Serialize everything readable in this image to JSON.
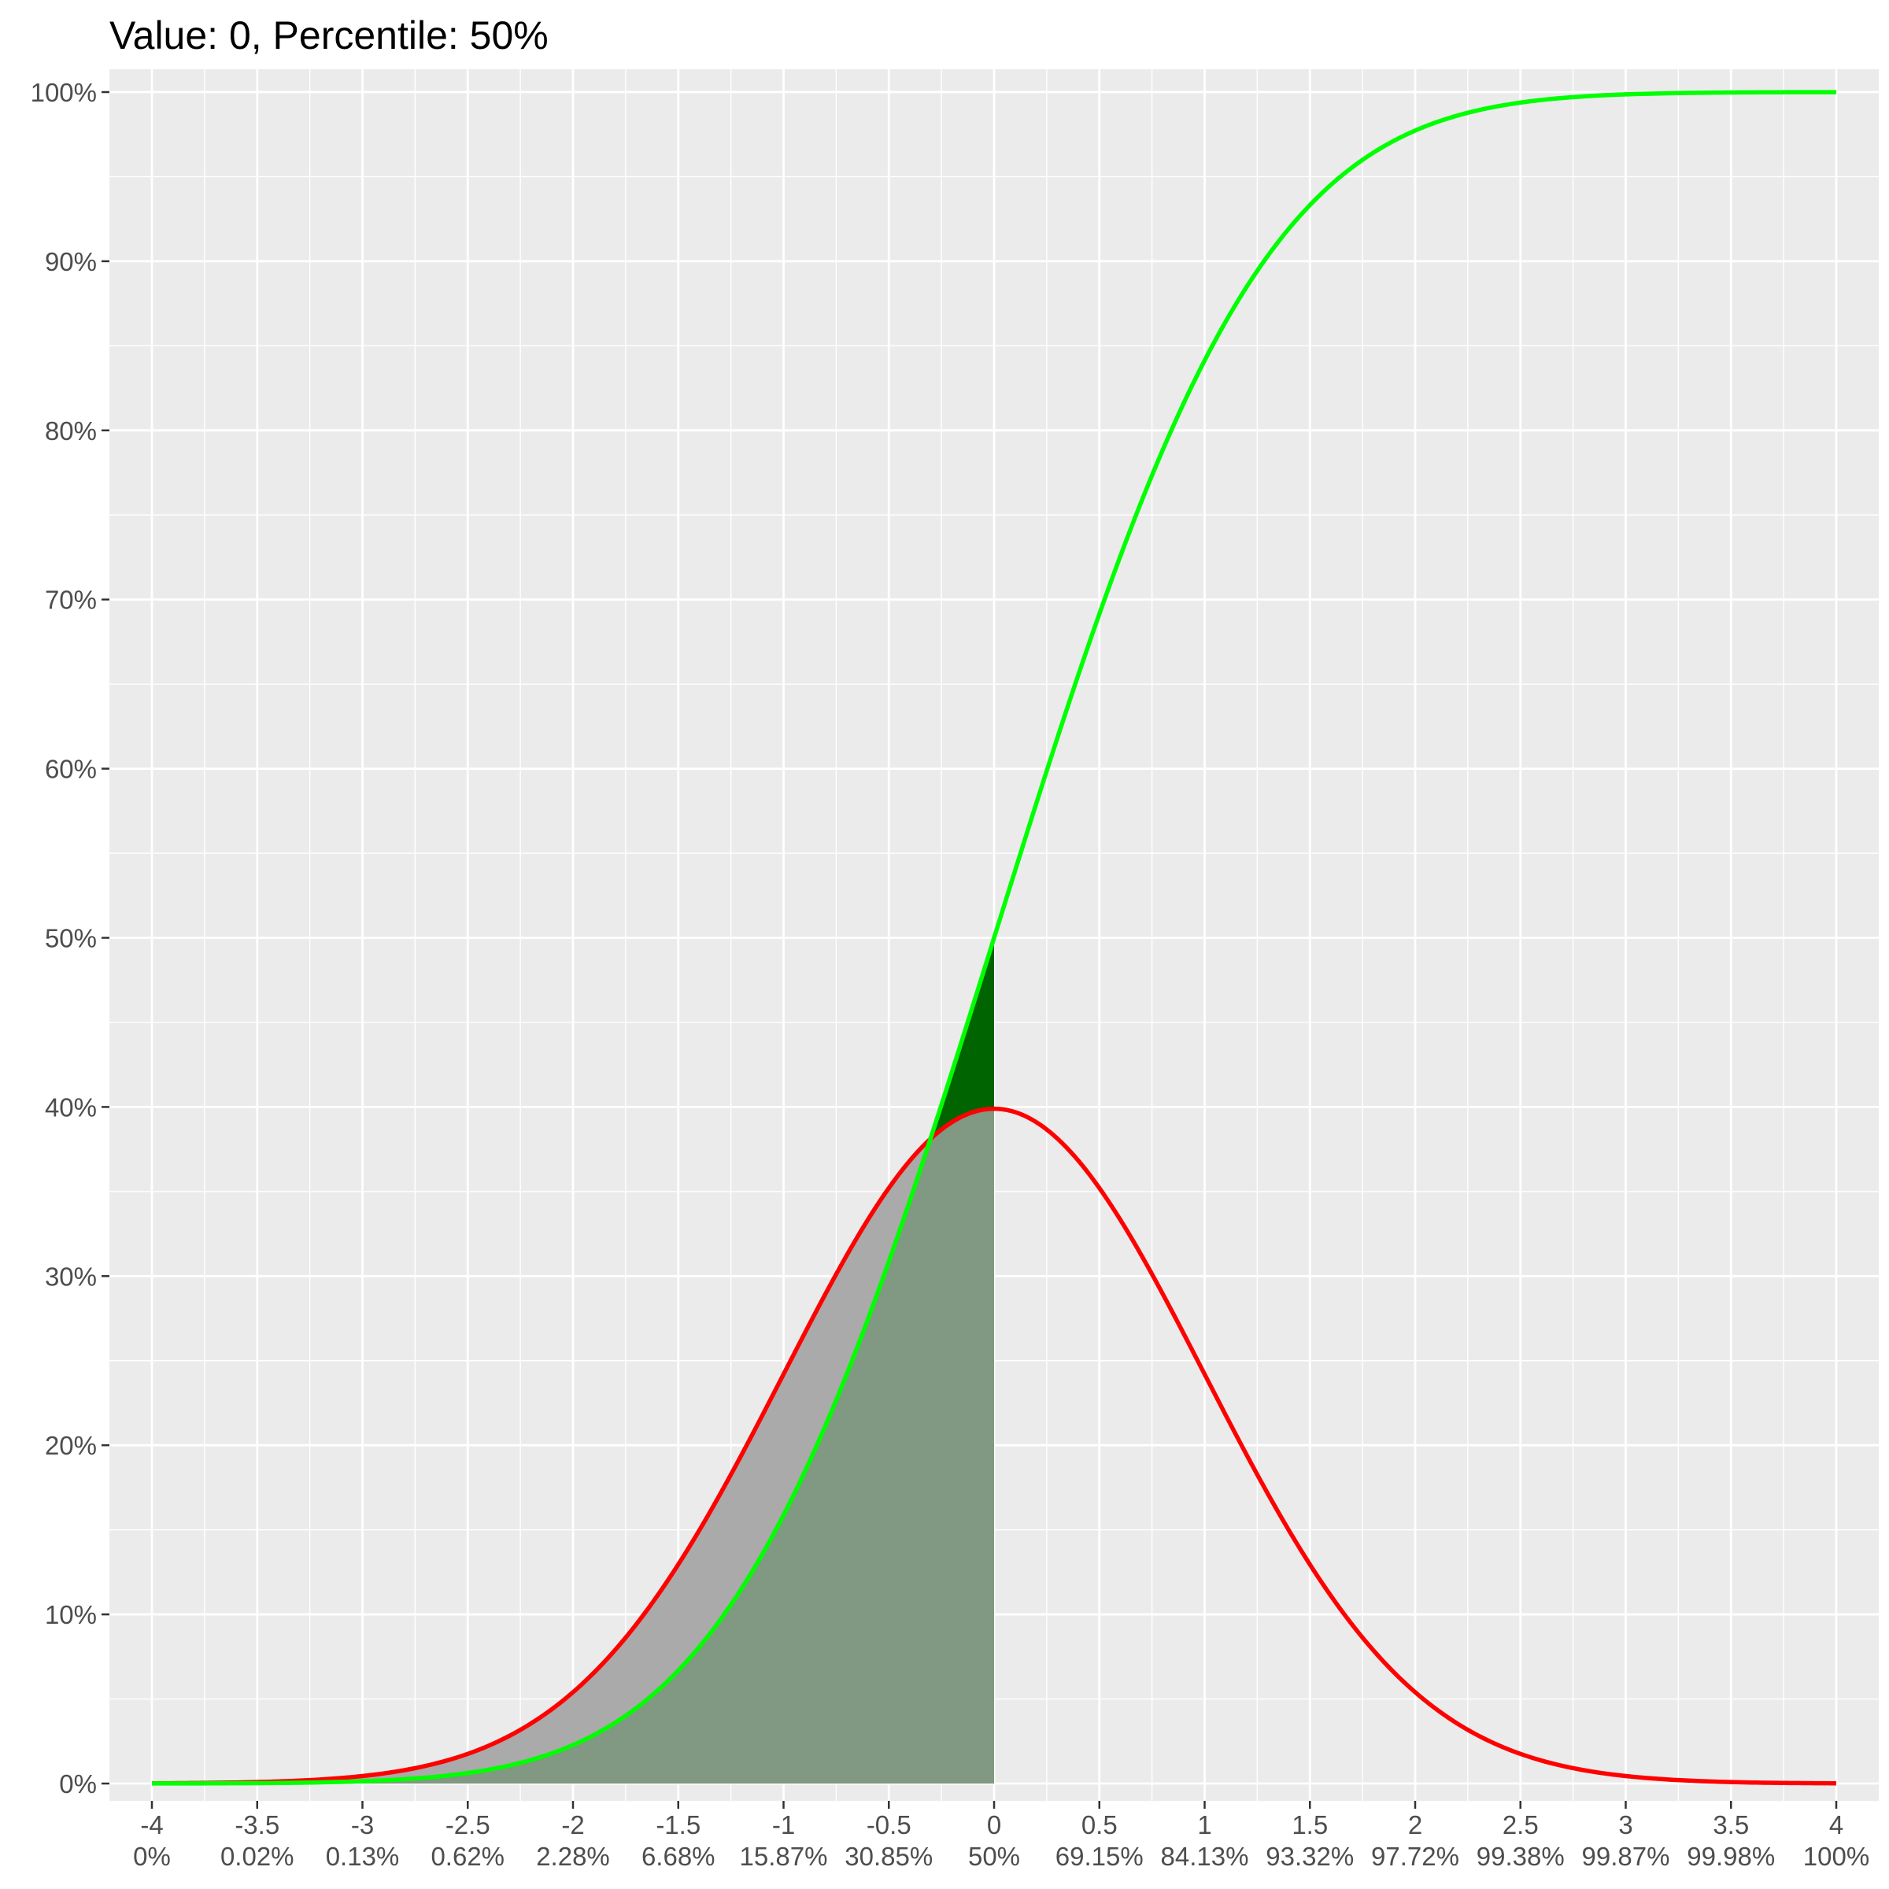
{
  "chart_data": {
    "type": "line",
    "title": "Value: 0, Percentile: 50%",
    "xlim": [
      -4,
      4
    ],
    "ylim": [
      0,
      1
    ],
    "grid": true,
    "legend": "none",
    "x_ticks": [
      {
        "value": -4,
        "label": "-4",
        "percentile_label": "0%"
      },
      {
        "value": -3.5,
        "label": "-3.5",
        "percentile_label": "0.02%"
      },
      {
        "value": -3,
        "label": "-3",
        "percentile_label": "0.13%"
      },
      {
        "value": -2.5,
        "label": "-2.5",
        "percentile_label": "0.62%"
      },
      {
        "value": -2,
        "label": "-2",
        "percentile_label": "2.28%"
      },
      {
        "value": -1.5,
        "label": "-1.5",
        "percentile_label": "6.68%"
      },
      {
        "value": -1,
        "label": "-1",
        "percentile_label": "15.87%"
      },
      {
        "value": -0.5,
        "label": "-0.5",
        "percentile_label": "30.85%"
      },
      {
        "value": 0,
        "label": "0",
        "percentile_label": "50%"
      },
      {
        "value": 0.5,
        "label": "0.5",
        "percentile_label": "69.15%"
      },
      {
        "value": 1,
        "label": "1",
        "percentile_label": "84.13%"
      },
      {
        "value": 1.5,
        "label": "1.5",
        "percentile_label": "93.32%"
      },
      {
        "value": 2,
        "label": "2",
        "percentile_label": "97.72%"
      },
      {
        "value": 2.5,
        "label": "2.5",
        "percentile_label": "99.38%"
      },
      {
        "value": 3,
        "label": "3",
        "percentile_label": "99.87%"
      },
      {
        "value": 3.5,
        "label": "3.5",
        "percentile_label": "99.98%"
      },
      {
        "value": 4,
        "label": "4",
        "percentile_label": "100%"
      }
    ],
    "y_ticks": [
      {
        "value": 0,
        "label": "0%"
      },
      {
        "value": 0.1,
        "label": "10%"
      },
      {
        "value": 0.2,
        "label": "20%"
      },
      {
        "value": 0.3,
        "label": "30%"
      },
      {
        "value": 0.4,
        "label": "40%"
      },
      {
        "value": 0.5,
        "label": "50%"
      },
      {
        "value": 0.6,
        "label": "60%"
      },
      {
        "value": 0.7,
        "label": "70%"
      },
      {
        "value": 0.8,
        "label": "80%"
      },
      {
        "value": 0.9,
        "label": "90%"
      },
      {
        "value": 1.0,
        "label": "100%"
      }
    ],
    "series": [
      {
        "kind": "density",
        "color": "#ff0000",
        "x": [
          -4,
          -3.75,
          -3.5,
          -3.25,
          -3,
          -2.75,
          -2.5,
          -2.25,
          -2,
          -1.75,
          -1.5,
          -1.25,
          -1,
          -0.75,
          -0.5,
          -0.25,
          0,
          0.25,
          0.5,
          0.75,
          1,
          1.25,
          1.5,
          1.75,
          2,
          2.25,
          2.5,
          2.75,
          3,
          3.25,
          3.5,
          3.75,
          4
        ],
        "y": [
          0.0001,
          0.0004,
          0.0009,
          0.002,
          0.0044,
          0.0091,
          0.0175,
          0.0317,
          0.054,
          0.0863,
          0.1295,
          0.1826,
          0.242,
          0.3011,
          0.3521,
          0.3867,
          0.3989,
          0.3867,
          0.3521,
          0.3011,
          0.242,
          0.1826,
          0.1295,
          0.0863,
          0.054,
          0.0317,
          0.0175,
          0.0091,
          0.0044,
          0.002,
          0.0009,
          0.0004,
          0.0001
        ]
      },
      {
        "kind": "cumulative",
        "color": "#00ff00",
        "x": [
          -4,
          -3.75,
          -3.5,
          -3.25,
          -3,
          -2.75,
          -2.5,
          -2.25,
          -2,
          -1.75,
          -1.5,
          -1.25,
          -1,
          -0.75,
          -0.5,
          -0.25,
          0,
          0.25,
          0.5,
          0.75,
          1,
          1.25,
          1.5,
          1.75,
          2,
          2.25,
          2.5,
          2.75,
          3,
          3.25,
          3.5,
          3.75,
          4
        ],
        "y": [
          0,
          0.0001,
          0.0002,
          0.0006,
          0.0013,
          0.003,
          0.0062,
          0.0122,
          0.0228,
          0.0401,
          0.0668,
          0.1056,
          0.1587,
          0.2266,
          0.3085,
          0.4013,
          0.5,
          0.5987,
          0.6915,
          0.7734,
          0.8413,
          0.8944,
          0.9332,
          0.9599,
          0.9772,
          0.9878,
          0.9938,
          0.997,
          0.9987,
          0.9994,
          0.9998,
          0.9999,
          1
        ]
      }
    ],
    "shaded_upto": 0,
    "colors": {
      "density_fill": "#aaaaaa",
      "cumulative_fill": "#006400",
      "overlap_fill": "#819882",
      "panel": "#ebebeb",
      "grid": "#ffffff"
    }
  }
}
